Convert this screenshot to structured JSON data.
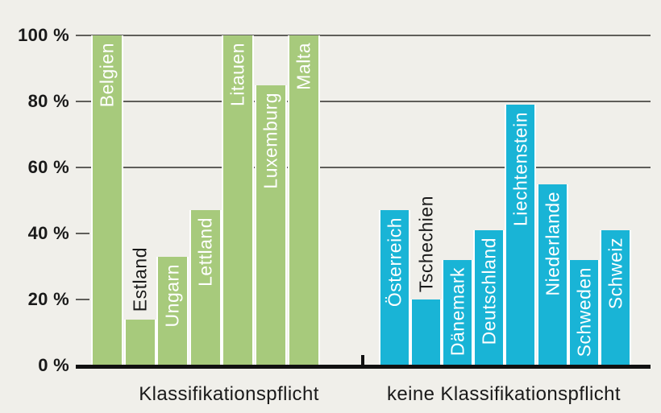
{
  "background_color": "#f0efea",
  "chart_data": {
    "type": "bar",
    "title": "",
    "xlabel": "",
    "ylabel": "",
    "unit": "%",
    "ylim": [
      0,
      100
    ],
    "legend": "none",
    "grid": "horizontal gridlines at 60/80/100, short ticks only at 20/40",
    "yticks": [
      {
        "label": "0 %",
        "level": 0
      },
      {
        "label": "20 %",
        "level": 20
      },
      {
        "label": "40 %",
        "level": 40
      },
      {
        "label": "60 %",
        "level": 60
      },
      {
        "label": "80 %",
        "level": 80
      },
      {
        "label": "100 %",
        "level": 100
      }
    ],
    "full_gridline_levels": [
      60,
      80,
      100
    ],
    "short_tick_levels": [
      20,
      40
    ],
    "groups": [
      {
        "label": "Klassifikationspflicht",
        "color": "#a7ca7c",
        "bars": [
          {
            "country": "Belgien",
            "value": 100,
            "label_inside": true
          },
          {
            "country": "Estland",
            "value": 14,
            "label_inside": false
          },
          {
            "country": "Ungarn",
            "value": 33,
            "label_inside": true
          },
          {
            "country": "Lettland",
            "value": 47,
            "label_inside": true
          },
          {
            "country": "Litauen",
            "value": 100,
            "label_inside": true
          },
          {
            "country": "Luxemburg",
            "value": 85,
            "label_inside": true
          },
          {
            "country": "Malta",
            "value": 100,
            "label_inside": true
          }
        ]
      },
      {
        "label": "keine Klassifikationspflicht",
        "color": "#19b4d6",
        "bars": [
          {
            "country": "Österreich",
            "value": 47,
            "label_inside": true
          },
          {
            "country": "Tschechien",
            "value": 20,
            "label_inside": false
          },
          {
            "country": "Dänemark",
            "value": 32,
            "label_inside": true
          },
          {
            "country": "Deutschland",
            "value": 41,
            "label_inside": true
          },
          {
            "country": "Liechtenstein",
            "value": 79,
            "label_inside": true
          },
          {
            "country": "Niederlande",
            "value": 55,
            "label_inside": true
          },
          {
            "country": "Schweden",
            "value": 32,
            "label_inside": true
          },
          {
            "country": "Schweiz",
            "value": 41,
            "label_inside": true
          }
        ]
      }
    ]
  },
  "colors": {
    "green_bar": "#a7ca7c",
    "blue_bar": "#19b4d6",
    "bar_label_inside": "#ffffff",
    "bar_label_outside": "#1a1a1a",
    "axis": "#111111",
    "gridline": "#5f5e5a",
    "text": "#1a1a1a",
    "background": "#f0efea",
    "bar_separator": "#ffffff"
  }
}
